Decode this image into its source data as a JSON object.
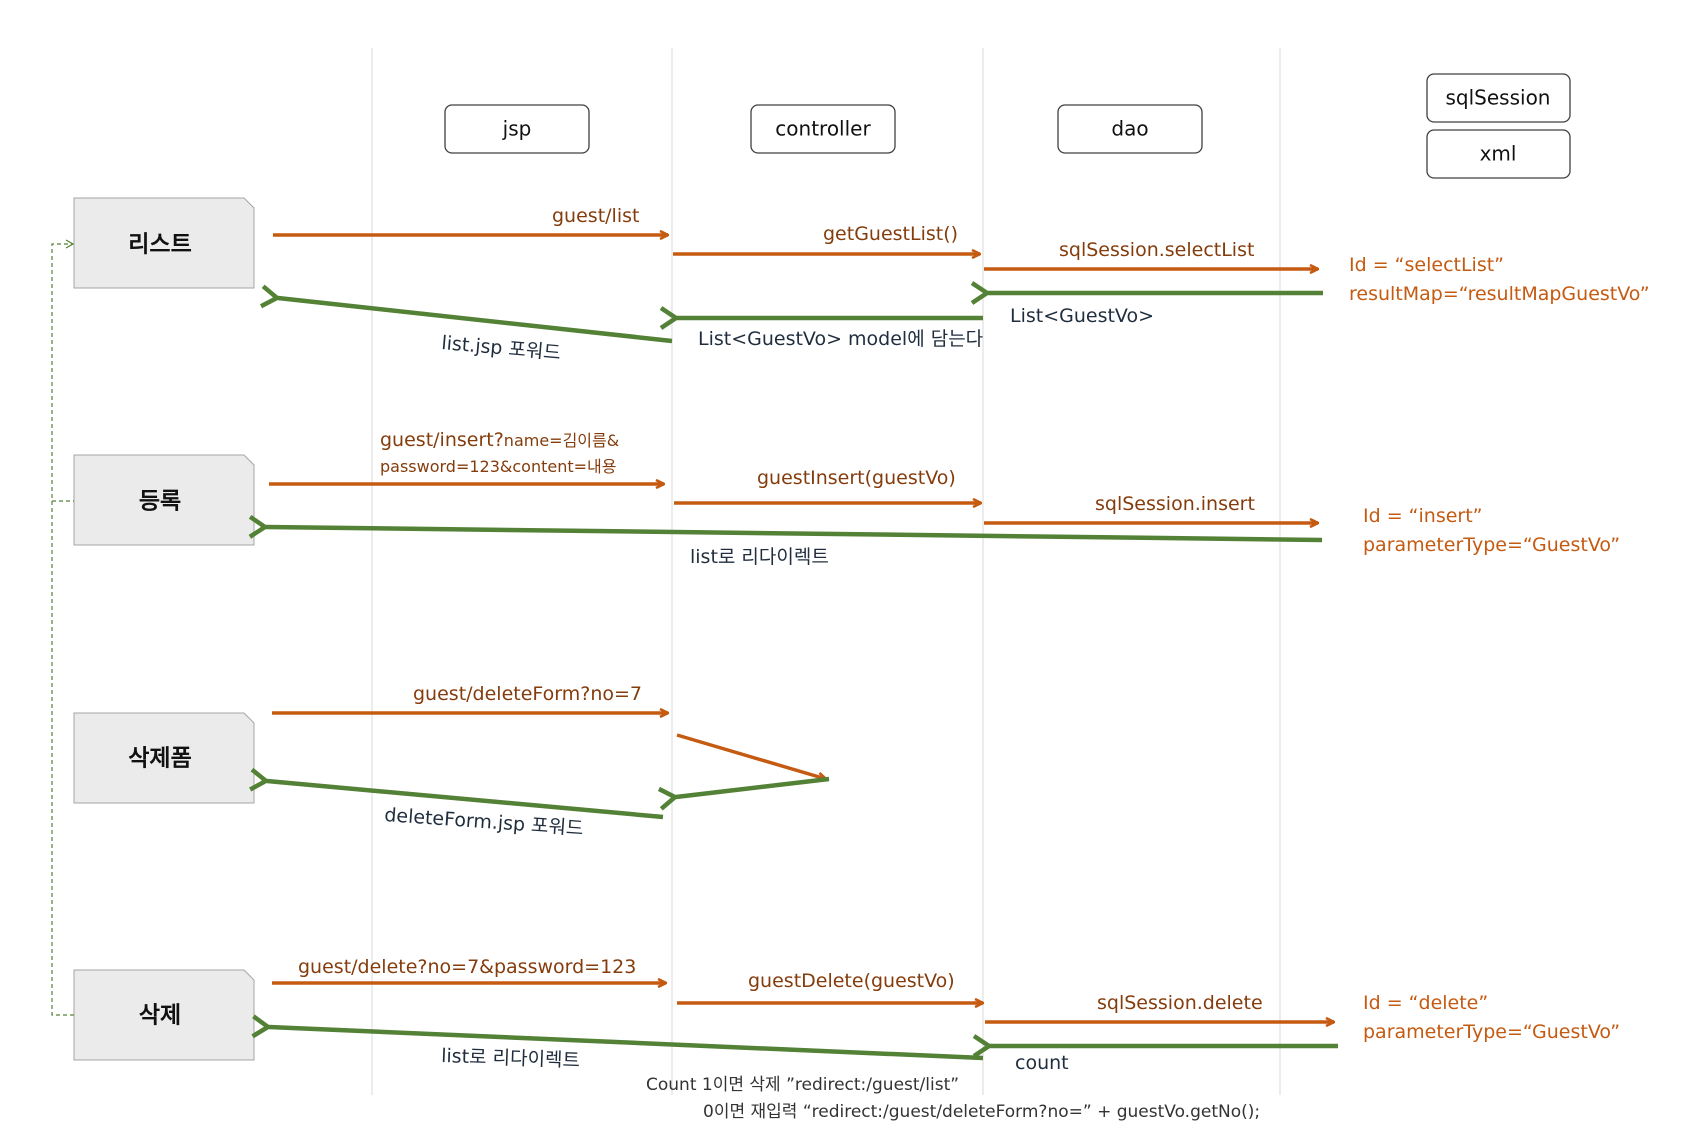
{
  "headers": {
    "jsp": "jsp",
    "controller": "controller",
    "dao": "dao",
    "sqlsession": "sqlSession",
    "xml": "xml"
  },
  "pages": {
    "list": "리스트",
    "insert": "등록",
    "delete_form": "삭제폼",
    "delete": "삭제"
  },
  "list_flow": {
    "request": "guest/list",
    "controller_call": "getGuestList()",
    "dao_call": "sqlSession.selectList",
    "xml_id": "Id = “selectList”",
    "xml_map": "resultMap=“resultMapGuestVo”",
    "dao_return": "List<GuestVo>",
    "controller_return": "List<GuestVo> model에 담는다",
    "forward": "list.jsp 포워드"
  },
  "insert_flow": {
    "request_main": "guest/insert?",
    "request_params": "name=김이름&",
    "request_line2": "password=123&content=내용",
    "controller_call": "guestInsert(guestVo)",
    "dao_call": "sqlSession.insert",
    "xml_id": "Id = “insert”",
    "xml_param": "parameterType=“GuestVo”",
    "redirect": "list로 리다이렉트"
  },
  "delete_form_flow": {
    "request": "guest/deleteForm?no=7",
    "forward": "deleteForm.jsp 포워드"
  },
  "delete_flow": {
    "request": "guest/delete?no=7&password=123",
    "controller_call": "guestDelete(guestVo)",
    "dao_call": "sqlSession.delete",
    "xml_id": "Id = “delete”",
    "xml_param": "parameterType=“GuestVo”",
    "dao_return": "count",
    "redirect": "list로 리다이렉트",
    "note_line1": "Count 1이면 삭제 ”redirect:/guest/list”",
    "note_line2": "0이면 재입력 “redirect:/guest/deleteForm?no=”  + guestVo.getNo();"
  },
  "colors": {
    "request": "#c55a11",
    "response": "#538135"
  }
}
